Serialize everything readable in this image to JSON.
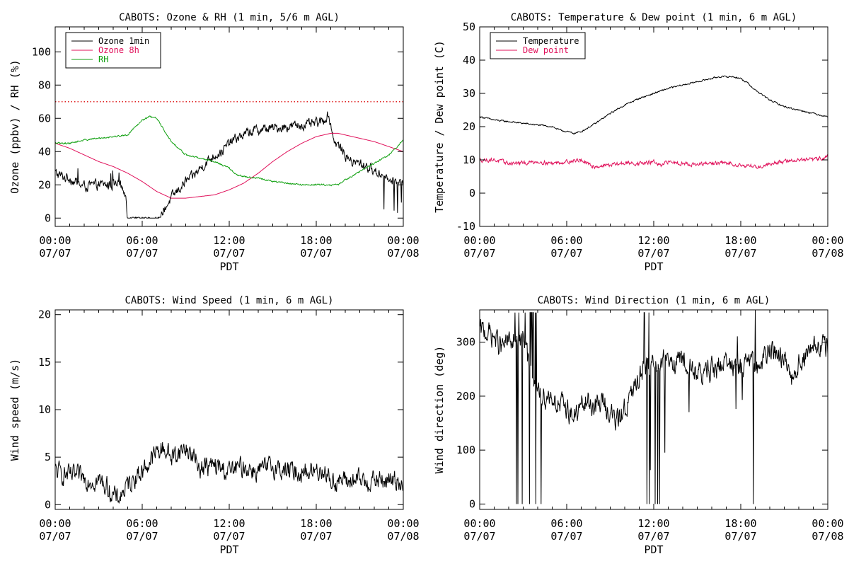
{
  "chart_data": [
    {
      "type": "line",
      "title": "CABOTS: Ozone & RH (1 min, 5/6 m AGL)",
      "xlabel": "PDT",
      "ylabel": "Ozone (ppbv) / RH (%)",
      "x_ticks": [
        [
          "00:00",
          "07/07"
        ],
        [
          "06:00",
          "07/07"
        ],
        [
          "12:00",
          "07/07"
        ],
        [
          "18:00",
          "07/07"
        ],
        [
          "00:00",
          "07/08"
        ]
      ],
      "xlim": [
        0,
        24
      ],
      "ylim": [
        -5,
        115
      ],
      "y_ticks": [
        0,
        20,
        40,
        60,
        80,
        100
      ],
      "legend_position": "top-left",
      "reference_line": {
        "y": 70,
        "color": "#e02020",
        "style": "dotted"
      },
      "series": [
        {
          "name": "Ozone 1min",
          "color": "#000000",
          "noise": 2.5,
          "x": [
            0,
            0.5,
            1,
            1.5,
            2,
            3,
            4,
            4.5,
            4.7,
            4.9,
            5,
            5.5,
            6,
            6.5,
            7,
            7.2,
            7.5,
            8,
            8.5,
            9,
            9.5,
            10,
            10.5,
            11,
            11.5,
            12,
            12.5,
            13,
            13.5,
            14,
            15,
            16,
            17,
            17.5,
            18,
            18.5,
            18.8,
            19,
            19.3,
            19.5,
            20,
            20.5,
            21,
            21.5,
            22,
            23,
            23.5,
            24
          ],
          "y": [
            27,
            25,
            24,
            21,
            19,
            20,
            20,
            19,
            18,
            8,
            1,
            0,
            0,
            0,
            0,
            0.5,
            5,
            12,
            17,
            22,
            25,
            30,
            34,
            38,
            40,
            45,
            48,
            50,
            52,
            53,
            54,
            55,
            56,
            56,
            57,
            58,
            63,
            56,
            45,
            44,
            38,
            33,
            33,
            31,
            28,
            25,
            22,
            20
          ]
        },
        {
          "name": "Ozone 8h",
          "color": "#e0105a",
          "noise": 0,
          "x": [
            0,
            1,
            2,
            3,
            4,
            5,
            6,
            6.5,
            7,
            7.5,
            8,
            9,
            10,
            11,
            12,
            13,
            14,
            15,
            16,
            17,
            18,
            19,
            19.5,
            20,
            21,
            22,
            23,
            24
          ],
          "y": [
            45,
            42,
            38,
            34,
            31,
            27,
            22,
            19,
            16,
            14,
            12,
            12,
            13,
            14,
            17,
            21,
            27,
            34,
            40,
            45,
            49,
            51,
            51,
            50,
            48,
            46,
            43,
            40
          ]
        },
        {
          "name": "RH",
          "color": "#10a010",
          "noise": 0.4,
          "x": [
            0,
            0.5,
            1,
            2,
            3,
            4,
            5,
            5.5,
            6,
            6.5,
            7,
            7.5,
            8,
            9,
            10,
            11,
            12,
            12.5,
            13,
            14,
            15,
            16,
            17,
            18,
            19,
            19.5,
            20,
            21,
            22,
            23,
            23.5,
            24
          ],
          "y": [
            45,
            45,
            45,
            47,
            48,
            49,
            50,
            55,
            59,
            61,
            60,
            53,
            46,
            38,
            36,
            34,
            30,
            26,
            25,
            24,
            22,
            21,
            20,
            20,
            20,
            20,
            23,
            28,
            33,
            38,
            42,
            47
          ]
        }
      ]
    },
    {
      "type": "line",
      "title": "CABOTS: Temperature & Dew point (1 min, 6 m AGL)",
      "xlabel": "PDT",
      "ylabel": "Temperature / Dew point (C)",
      "x_ticks": [
        [
          "00:00",
          "07/07"
        ],
        [
          "06:00",
          "07/07"
        ],
        [
          "12:00",
          "07/07"
        ],
        [
          "18:00",
          "07/07"
        ],
        [
          "00:00",
          "07/08"
        ]
      ],
      "xlim": [
        0,
        24
      ],
      "ylim": [
        -10,
        50
      ],
      "y_ticks": [
        -10,
        0,
        10,
        20,
        30,
        40,
        50
      ],
      "legend_position": "top-left",
      "series": [
        {
          "name": "Temperature",
          "color": "#000000",
          "noise": 0.2,
          "x": [
            0,
            1,
            2,
            3,
            4,
            5,
            5.5,
            6,
            6.5,
            7,
            8,
            9,
            10,
            11,
            12,
            13,
            14,
            15,
            16,
            16.5,
            17,
            17.5,
            18,
            18.5,
            19,
            20,
            21,
            22,
            23,
            24
          ],
          "y": [
            23,
            22,
            21.5,
            21,
            20.5,
            20,
            19,
            18.5,
            18,
            18.5,
            21,
            24,
            26.5,
            28.5,
            30,
            31.5,
            32.5,
            33.5,
            34.5,
            35,
            35,
            35,
            34.5,
            33,
            31,
            28,
            26,
            25,
            24,
            23
          ]
        },
        {
          "name": "Dew point",
          "color": "#e0105a",
          "noise": 0.5,
          "x": [
            0,
            1,
            2,
            3,
            4,
            5,
            6,
            7,
            7.5,
            8,
            9,
            10,
            11,
            11.5,
            12,
            12.5,
            13,
            14,
            15,
            16,
            17,
            18,
            19,
            19.5,
            20,
            21,
            22,
            23,
            24
          ],
          "y": [
            10,
            10,
            9,
            9,
            9.5,
            9,
            9.5,
            10,
            8.5,
            8,
            8.5,
            9,
            9,
            9,
            9.5,
            8,
            9.5,
            9,
            8.5,
            9,
            9,
            8.5,
            8,
            8,
            9,
            9.5,
            10,
            10,
            11
          ]
        }
      ]
    },
    {
      "type": "line",
      "title": "CABOTS: Wind Speed (1 min, 6 m AGL)",
      "xlabel": "PDT",
      "ylabel": "Wind speed (m/s)",
      "x_ticks": [
        [
          "00:00",
          "07/07"
        ],
        [
          "06:00",
          "07/07"
        ],
        [
          "12:00",
          "07/07"
        ],
        [
          "18:00",
          "07/07"
        ],
        [
          "00:00",
          "07/08"
        ]
      ],
      "xlim": [
        0,
        24
      ],
      "ylim": [
        -0.5,
        20.5
      ],
      "y_ticks": [
        0,
        5,
        10,
        15,
        20
      ],
      "series": [
        {
          "name": "",
          "color": "#000000",
          "noise": 0.9,
          "x": [
            0,
            1,
            2,
            3,
            3.5,
            4,
            4.3,
            4.5,
            5,
            5.5,
            6,
            6.5,
            7,
            7.5,
            8,
            8.5,
            9,
            9.5,
            10,
            11,
            12,
            13,
            14,
            15,
            16,
            17,
            18,
            18.5,
            19,
            20,
            21,
            22,
            23,
            24
          ],
          "y": [
            3.5,
            3,
            2.8,
            2.5,
            2,
            1,
            0.5,
            1,
            2,
            3,
            3.5,
            4.5,
            5.5,
            6,
            5,
            5.5,
            6,
            5,
            4,
            4,
            3.5,
            4,
            3.5,
            4,
            3.5,
            3.5,
            3.5,
            3.8,
            2.5,
            2.5,
            2.5,
            2.5,
            2.5,
            2.5
          ]
        }
      ]
    },
    {
      "type": "line",
      "title": "CABOTS: Wind Direction (1 min, 6 m AGL)",
      "xlabel": "PDT",
      "ylabel": "Wind direction (deg)",
      "x_ticks": [
        [
          "00:00",
          "07/07"
        ],
        [
          "06:00",
          "07/07"
        ],
        [
          "12:00",
          "07/07"
        ],
        [
          "18:00",
          "07/07"
        ],
        [
          "00:00",
          "07/08"
        ]
      ],
      "xlim": [
        0,
        24
      ],
      "ylim": [
        -10,
        360
      ],
      "y_ticks": [
        0,
        100,
        200,
        300
      ],
      "series": [
        {
          "name": "",
          "color": "#000000",
          "noise": 18,
          "x": [
            0,
            0.5,
            1,
            1.5,
            2,
            2.5,
            3,
            3.5,
            4,
            4.5,
            5,
            5.5,
            6,
            6.5,
            7,
            7.5,
            8,
            8.5,
            9,
            9.5,
            10,
            10.5,
            11,
            11.5,
            12,
            13,
            14,
            15,
            16,
            17,
            18,
            18.5,
            19,
            19.5,
            20,
            20.5,
            21,
            21.5,
            22,
            23,
            24
          ],
          "y": [
            320,
            320,
            310,
            290,
            300,
            310,
            300,
            250,
            200,
            200,
            200,
            180,
            180,
            160,
            180,
            190,
            180,
            190,
            170,
            150,
            180,
            200,
            240,
            250,
            260,
            270,
            260,
            240,
            250,
            260,
            250,
            260,
            250,
            260,
            290,
            280,
            270,
            240,
            260,
            290,
            290
          ]
        }
      ]
    }
  ]
}
